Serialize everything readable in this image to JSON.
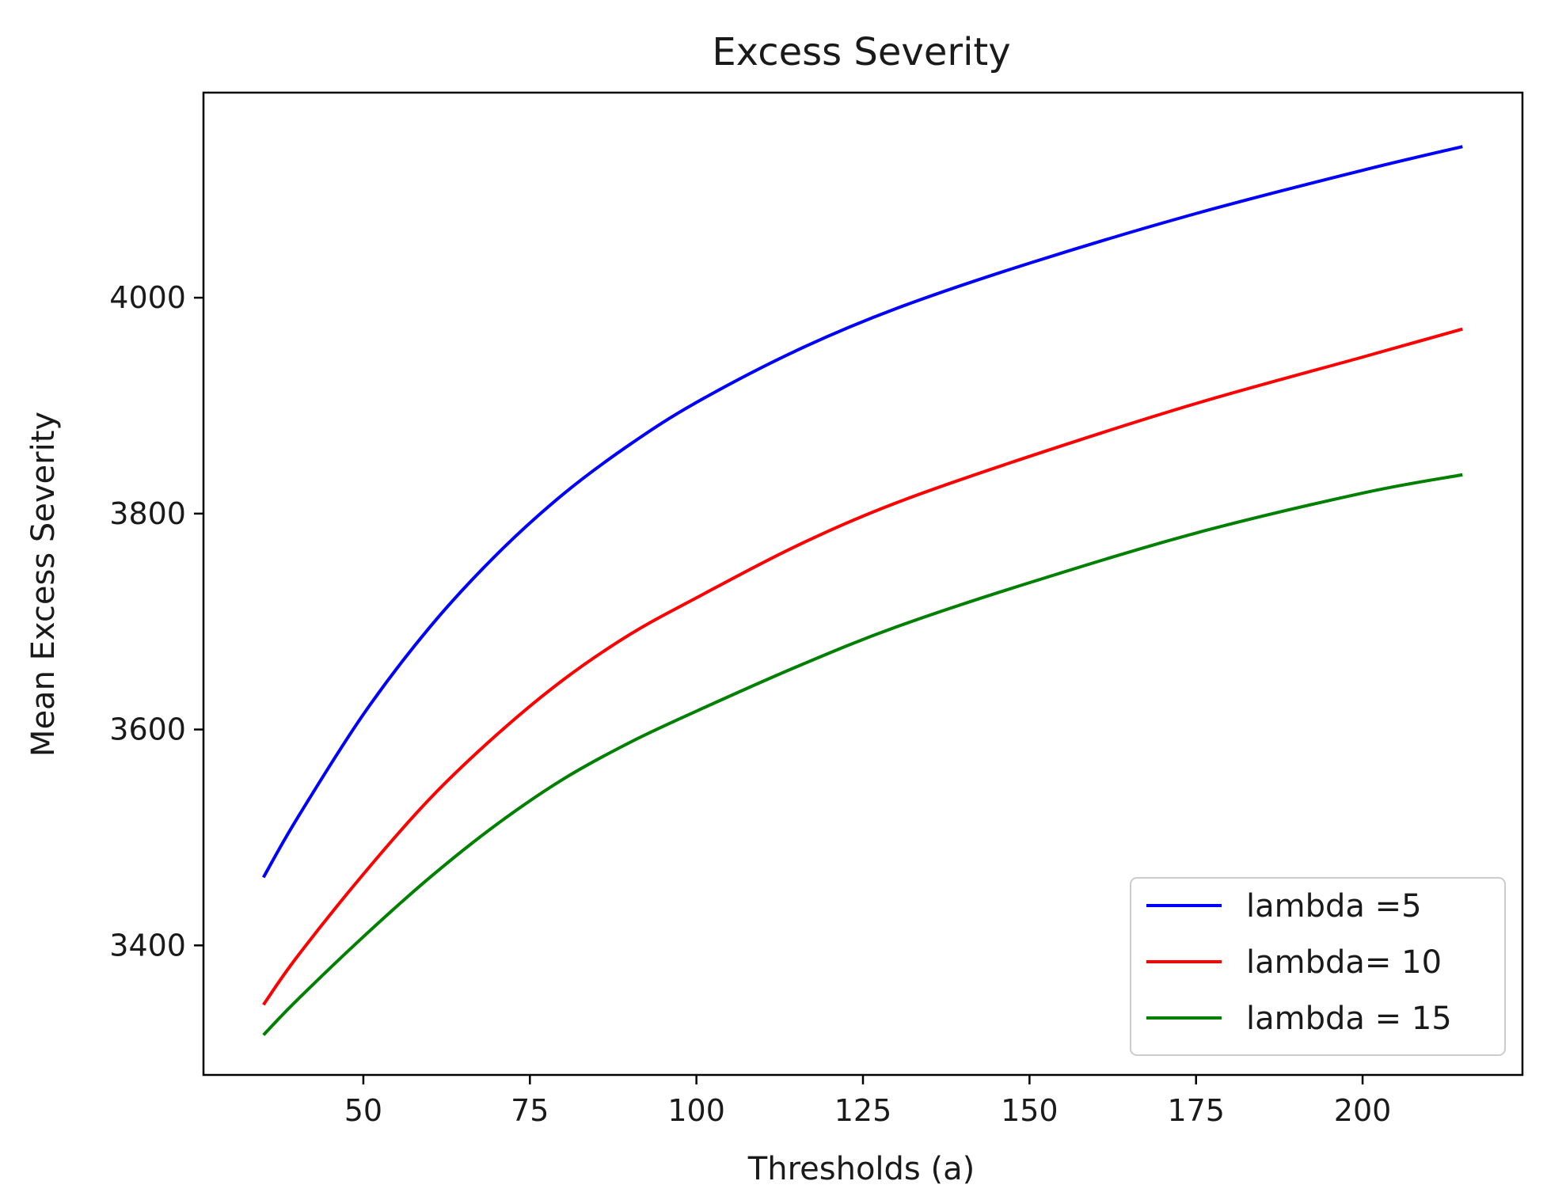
{
  "chart_data": {
    "type": "line",
    "title": "Excess Severity",
    "xlabel": "Thresholds (a)",
    "ylabel": "Mean Excess Severity",
    "xlim": [
      26,
      224
    ],
    "ylim": [
      3280,
      4190
    ],
    "xticks": [
      50,
      75,
      100,
      125,
      150,
      175,
      200
    ],
    "yticks": [
      3400,
      3600,
      3800,
      4000
    ],
    "grid": false,
    "legend_position": "lower-right",
    "x": [
      35,
      40,
      50,
      60,
      70,
      80,
      90,
      100,
      115,
      130,
      150,
      175,
      200,
      215
    ],
    "series": [
      {
        "name": "lambda =5",
        "color": "#0000ff",
        "values": [
          3463,
          3517,
          3614,
          3695,
          3762,
          3818,
          3864,
          3903,
          3951,
          3990,
          4032,
          4078,
          4118,
          4140
        ]
      },
      {
        "name": "lambda= 10",
        "color": "#ff0000",
        "values": [
          3345,
          3389,
          3466,
          3536,
          3595,
          3646,
          3688,
          3722,
          3770,
          3810,
          3853,
          3902,
          3945,
          3971
        ]
      },
      {
        "name": "lambda = 15",
        "color": "#008000",
        "values": [
          3317,
          3349,
          3408,
          3463,
          3512,
          3554,
          3588,
          3617,
          3658,
          3695,
          3736,
          3782,
          3819,
          3836
        ]
      }
    ]
  }
}
